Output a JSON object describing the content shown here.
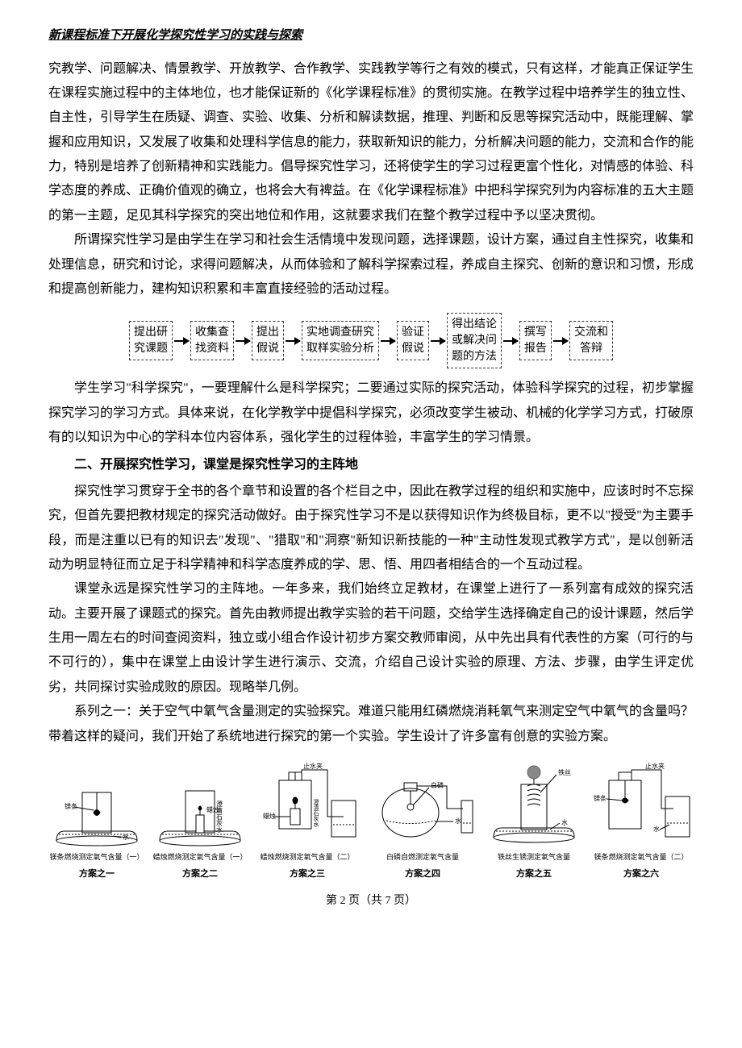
{
  "header": {
    "running_title": "新课程标准下开展化学探究性学习的实践与探索"
  },
  "body": {
    "para1": "究教学、问题解决、情景教学、开放教学、合作教学、实践教学等行之有效的模式，只有这样，才能真正保证学生在课程实施过程中的主体地位，也才能保证新的《化学课程标准》的贯彻实施。在教学过程中培养学生的独立性、自主性，引导学生在质疑、调查、实验、收集、分析和解读数据，推理、判断和反思等探究活动中，既能理解、掌握和应用知识，又发展了收集和处理科学信息的能力，获取新知识的能力，分析解决问题的能力，交流和合作的能力，特别是培养了创新精神和实践能力。倡导探究性学习，还将使学生的学习过程更富个性化，对情感的体验、科学态度的养成、正确价值观的确立，也将会大有裨益。在《化学课程标准》中把科学探究列为内容标准的五大主题的第一主题，足见其科学探究的突出地位和作用，这就要求我们在整个教学过程中予以坚决贯彻。",
    "para2": "所谓探究性学习是由学生在学习和社会生活情境中发现问题，选择课题，设计方案，通过自主性探究，收集和处理信息，研究和讨论，求得问题解决，从而体验和了解科学探索过程，养成自主探究、创新的意识和习惯，形成和提高创新能力，建构知识积累和丰富直接经验的活动过程。",
    "para3": "学生学习\"科学探究\"，一要理解什么是科学探究；二要通过实际的探究活动，体验科学探究的过程，初步掌握探究学习的学习方式。具体来说，在化学教学中提倡科学探究，必须改变学生被动、机械的化学学习方式，打破原有的以知识为中心的学科本位内容体系，强化学生的过程体验，丰富学生的学习情景。",
    "section2_title": "二、开展探究性学习，课堂是探究性学习的主阵地",
    "para4": "探究性学习贯穿于全书的各个章节和设置的各个栏目之中，因此在教学过程的组织和实施中，应该时时不忘探究，但首先要把教材规定的探究活动做好。由于探究性学习不是以获得知识作为终极目标，更不以\"授受\"为主要手段，而是注重以已有的知识去\"发现\"、\"猎取\"和\"洞察\"新知识新技能的一种\"主动性发现式教学方式\"，是以创新活动为明显特征而立足于科学精神和科学态度养成的学、思、悟、用四者相结合的一个互动过程。",
    "para5": "课堂永远是探究性学习的主阵地。一年多来，我们始终立足教材，在课堂上进行了一系列富有成效的探究活动。主要开展了课题式的探究。首先由教师提出教学实验的若干问题，交给学生选择确定自己的设计课题，然后学生用一周左右的时间查阅资料，独立或小组合作设计初步方案交教师审阅，从中先出具有代表性的方案（可行的与不可行的），集中在课堂上由设计学生进行演示、交流，介绍自己设计实验的原理、方法、步骤，由学生评定优劣，共同探讨实验成败的原因。现略举几例。",
    "para6": "系列之一：关于空气中氧气含量测定的实验探究。难道只能用红磷燃烧消耗氧气来测定空气中氧气的含量吗？带着这样的疑问，我们开始了系统地进行探究的第一个实验。学生设计了许多富有创意的实验方案。"
  },
  "flowchart": {
    "boxes": [
      "提出研\n究课题",
      "收集查\n找资料",
      "提出\n假说",
      "实地调查研究\n取样实验分析",
      "验证\n假说",
      "得出结论\n或解决问\n题的方法",
      "撰写\n报告",
      "交流和\n答辩"
    ],
    "box_border_color": "#333333",
    "box_border_style": "dashed",
    "arrow_color": "#000000",
    "font_size": 14
  },
  "figures": {
    "items": [
      {
        "caption1": "镁条燃烧测定氧气含量（一）",
        "caption2": "方案之一",
        "labels": {
          "a": "镁条",
          "b": "水"
        }
      },
      {
        "caption1": "蜡烛燃烧测定氧气含量（一）",
        "caption2": "方案之二",
        "labels": {
          "a": "蜡烛",
          "b": "澄清石灰水"
        }
      },
      {
        "caption1": "蜡烛燃烧测定氧气含量（二）",
        "caption2": "方案之三",
        "labels": {
          "a": "止水夹",
          "b": "蜡烛",
          "c": "澄清石灰水"
        }
      },
      {
        "caption1": "白磷自燃测定氧气含量",
        "caption2": "方案之四",
        "labels": {
          "a": "白磷",
          "b": "水"
        }
      },
      {
        "caption1": "铁丝生锈测定氧气含量",
        "caption2": "方案之五",
        "labels": {
          "a": "铁丝",
          "b": "水"
        }
      },
      {
        "caption1": "镁条燃烧测定氧气含量（二）",
        "caption2": "方案之六",
        "labels": {
          "a": "止水夹",
          "b": "镁条",
          "c": "水"
        }
      }
    ],
    "label_color": "#000000",
    "stroke_color": "#000000"
  },
  "footer": {
    "page_label": "第 2 页（共 7 页）"
  }
}
